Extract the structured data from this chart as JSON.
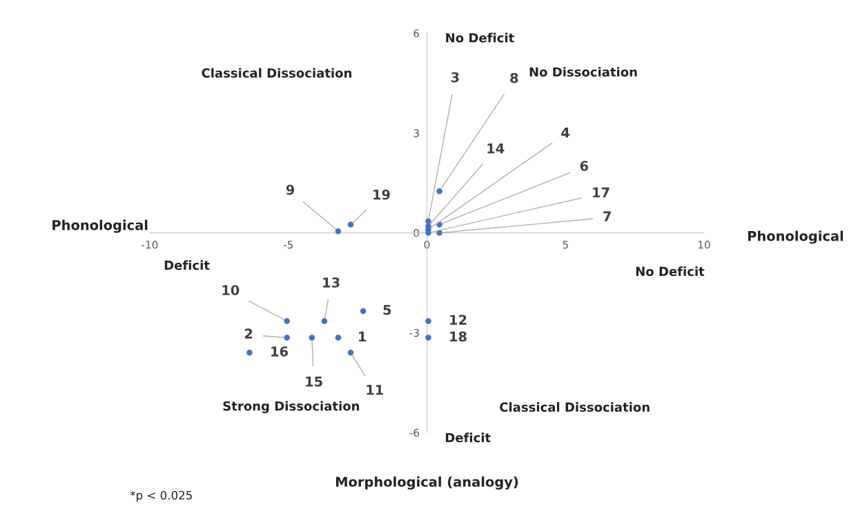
{
  "chart_data": {
    "type": "scatter",
    "xlabel": "Morphological (analogy)",
    "ylabel": "Phonological",
    "x": [
      -3.2,
      -2.75,
      0.45,
      0.05,
      0.05,
      0.05,
      0.45,
      0.05,
      0.45,
      -5.05,
      -3.7,
      -2.3,
      -5.05,
      -4.15,
      -3.2,
      -2.75,
      -6.4,
      0.05,
      0.05
    ],
    "series": [
      {
        "color": "#4472c4",
        "values": [
          0.05,
          0.25,
          1.25,
          0.35,
          0.2,
          0.1,
          0.25,
          0.0,
          0.0,
          -2.65,
          -2.65,
          -2.35,
          -3.15,
          -3.15,
          -3.15,
          -3.6,
          -3.6,
          -2.65,
          -3.15
        ]
      }
    ],
    "xlim": [
      -10,
      10
    ],
    "ylim": [
      -6,
      6
    ],
    "xticks": [
      -10,
      -5,
      0,
      5,
      10
    ],
    "yticks": [
      -6,
      -3,
      0,
      3,
      6
    ],
    "grid": false,
    "legend": false,
    "marker": "circle",
    "annotations": [
      {
        "text": "9",
        "x": -3.2,
        "y": 0.05
      },
      {
        "text": "19",
        "x": -2.75,
        "y": 0.25
      },
      {
        "text": "8",
        "x": 0.45,
        "y": 1.25
      },
      {
        "text": "3",
        "x": 0.05,
        "y": 0.35
      },
      {
        "text": "14",
        "x": 0.05,
        "y": 0.2
      },
      {
        "text": "4",
        "x": 0.05,
        "y": 0.1
      },
      {
        "text": "6",
        "x": 0.45,
        "y": 0.25
      },
      {
        "text": "17",
        "x": 0.05,
        "y": 0.0
      },
      {
        "text": "7",
        "x": 0.45,
        "y": 0.0
      },
      {
        "text": "10",
        "x": -5.05,
        "y": -2.65
      },
      {
        "text": "13",
        "x": -3.7,
        "y": -2.65
      },
      {
        "text": "5",
        "x": -2.3,
        "y": -2.35
      },
      {
        "text": "2",
        "x": -5.05,
        "y": -3.15
      },
      {
        "text": "15",
        "x": -4.15,
        "y": -3.15
      },
      {
        "text": "1",
        "x": -3.2,
        "y": -3.15
      },
      {
        "text": "11",
        "x": -2.75,
        "y": -3.6
      },
      {
        "text": "16",
        "x": -6.4,
        "y": -3.6
      },
      {
        "text": "12",
        "x": 0.05,
        "y": -2.65
      },
      {
        "text": "18",
        "x": 0.05,
        "y": -3.15
      },
      "No Deficit",
      "Classical Dissociation",
      "No Dissociation",
      "Deficit",
      "No Deficit",
      "Strong Dissociation",
      "Classical Dissociation",
      "Deficit",
      "Phonological",
      "*p < 0.025"
    ]
  }
}
